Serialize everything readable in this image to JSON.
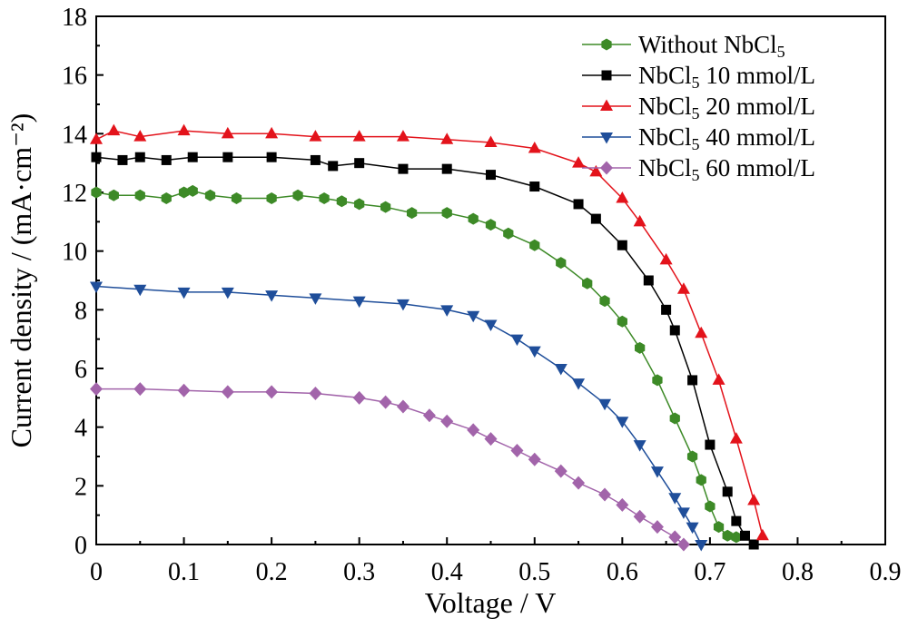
{
  "chart_data": {
    "type": "line",
    "xlabel": "Voltage / V",
    "ylabel": "Current density / (mA·cm⁻²)",
    "xlim": [
      0,
      0.9
    ],
    "ylim": [
      0,
      18
    ],
    "xticks": [
      "0",
      "0.1",
      "0.2",
      "0.3",
      "0.4",
      "0.5",
      "0.6",
      "0.7",
      "0.8",
      "0.9"
    ],
    "yticks": [
      "0",
      "2",
      "4",
      "6",
      "8",
      "10",
      "12",
      "14",
      "16",
      "18"
    ],
    "grid": false,
    "legend_position": "top-right",
    "series": [
      {
        "name": "Without NbCl5",
        "legend_main": "Without NbCl",
        "legend_sub": "5",
        "legend_rest": "",
        "color": "#3d8a27",
        "marker": "hexagon",
        "x": [
          0,
          0.02,
          0.05,
          0.08,
          0.1,
          0.11,
          0.13,
          0.16,
          0.2,
          0.23,
          0.26,
          0.28,
          0.3,
          0.33,
          0.36,
          0.4,
          0.43,
          0.45,
          0.47,
          0.5,
          0.53,
          0.56,
          0.58,
          0.6,
          0.62,
          0.64,
          0.66,
          0.68,
          0.69,
          0.7,
          0.71,
          0.72,
          0.73
        ],
        "y": [
          12,
          11.9,
          11.9,
          11.8,
          12,
          12.05,
          11.9,
          11.8,
          11.8,
          11.9,
          11.8,
          11.7,
          11.6,
          11.5,
          11.3,
          11.3,
          11.1,
          10.9,
          10.6,
          10.2,
          9.6,
          8.9,
          8.3,
          7.6,
          6.7,
          5.6,
          4.3,
          3.0,
          2.2,
          1.3,
          0.6,
          0.3,
          0.25
        ]
      },
      {
        "name": "NbCl5 10 mmol/L",
        "legend_main": "NbCl",
        "legend_sub": "5",
        "legend_rest": " 10 mmol/L",
        "color": "#000000",
        "marker": "square",
        "x": [
          0,
          0.03,
          0.05,
          0.08,
          0.11,
          0.15,
          0.2,
          0.25,
          0.27,
          0.3,
          0.35,
          0.4,
          0.45,
          0.5,
          0.55,
          0.57,
          0.6,
          0.63,
          0.65,
          0.66,
          0.68,
          0.7,
          0.72,
          0.73,
          0.74,
          0.75
        ],
        "y": [
          13.2,
          13.1,
          13.2,
          13.1,
          13.2,
          13.2,
          13.2,
          13.1,
          12.9,
          13.0,
          12.8,
          12.8,
          12.6,
          12.2,
          11.6,
          11.1,
          10.2,
          9.0,
          8.0,
          7.3,
          5.6,
          3.4,
          1.8,
          0.8,
          0.3,
          0.0
        ]
      },
      {
        "name": "NbCl5 20 mmol/L",
        "legend_main": "NbCl",
        "legend_sub": "5",
        "legend_rest": " 20 mmol/L",
        "color": "#e3131b",
        "marker": "triangle-up",
        "x": [
          0,
          0.02,
          0.05,
          0.1,
          0.15,
          0.2,
          0.25,
          0.3,
          0.35,
          0.4,
          0.45,
          0.5,
          0.55,
          0.57,
          0.6,
          0.62,
          0.65,
          0.67,
          0.69,
          0.71,
          0.73,
          0.75,
          0.76
        ],
        "y": [
          13.8,
          14.1,
          13.9,
          14.1,
          14.0,
          14.0,
          13.9,
          13.9,
          13.9,
          13.8,
          13.7,
          13.5,
          13.0,
          12.7,
          11.8,
          11.0,
          9.7,
          8.7,
          7.2,
          5.6,
          3.6,
          1.5,
          0.3
        ]
      },
      {
        "name": "NbCl5 40 mmol/L",
        "legend_main": "NbCl",
        "legend_sub": "5",
        "legend_rest": " 40 mmol/L",
        "color": "#1f4e9a",
        "marker": "triangle-down",
        "x": [
          0,
          0.05,
          0.1,
          0.15,
          0.2,
          0.25,
          0.3,
          0.35,
          0.4,
          0.43,
          0.45,
          0.48,
          0.5,
          0.53,
          0.55,
          0.58,
          0.6,
          0.62,
          0.64,
          0.66,
          0.67,
          0.68,
          0.69
        ],
        "y": [
          8.8,
          8.7,
          8.6,
          8.6,
          8.5,
          8.4,
          8.3,
          8.2,
          8.0,
          7.8,
          7.5,
          7.0,
          6.6,
          6.0,
          5.5,
          4.8,
          4.2,
          3.4,
          2.5,
          1.6,
          1.1,
          0.6,
          0.0
        ]
      },
      {
        "name": "NbCl5 60 mmol/L",
        "legend_main": "NbCl",
        "legend_sub": "5",
        "legend_rest": " 60 mmol/L",
        "color": "#a264aa",
        "marker": "diamond",
        "x": [
          0,
          0.05,
          0.1,
          0.15,
          0.2,
          0.25,
          0.3,
          0.33,
          0.35,
          0.38,
          0.4,
          0.43,
          0.45,
          0.48,
          0.5,
          0.53,
          0.55,
          0.58,
          0.6,
          0.62,
          0.64,
          0.66,
          0.67
        ],
        "y": [
          5.3,
          5.3,
          5.25,
          5.2,
          5.2,
          5.15,
          5.0,
          4.85,
          4.7,
          4.4,
          4.2,
          3.9,
          3.6,
          3.2,
          2.9,
          2.5,
          2.1,
          1.7,
          1.35,
          0.95,
          0.6,
          0.25,
          0.0
        ]
      }
    ]
  }
}
